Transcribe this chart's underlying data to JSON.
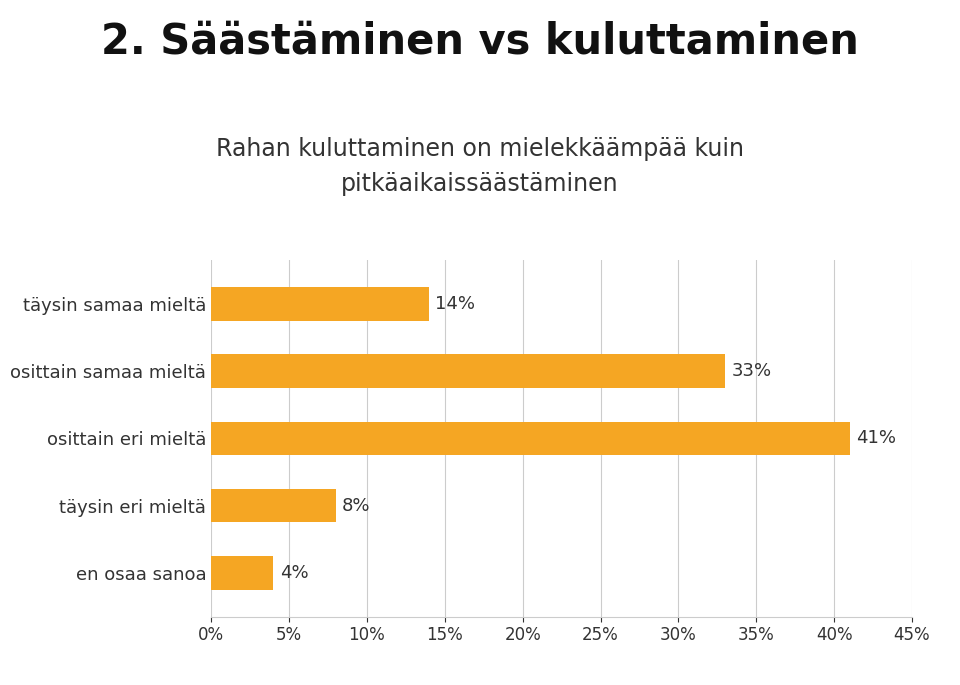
{
  "title": "2. Säästäminen vs kuluttaminen",
  "subtitle": "Rahan kuluttaminen on mielekkäämpää kuin\npitkäaikaissäästäminen",
  "categories": [
    "täysin samaa mieltä",
    "osittain samaa mieltä",
    "osittain eri mieltä",
    "täysin eri mieltä",
    "en osaa sanoa"
  ],
  "values": [
    14,
    33,
    41,
    8,
    4
  ],
  "labels": [
    "14%",
    "33%",
    "41%",
    "8%",
    "4%"
  ],
  "bar_color": "#F5A623",
  "background_color": "#FFFFFF",
  "grid_color": "#CCCCCC",
  "title_color": "#111111",
  "subtitle_color": "#333333",
  "label_color": "#333333",
  "xlim": [
    0,
    45
  ],
  "xticks": [
    0,
    5,
    10,
    15,
    20,
    25,
    30,
    35,
    40,
    45
  ],
  "xtick_labels": [
    "0%",
    "5%",
    "10%",
    "15%",
    "20%",
    "25%",
    "30%",
    "35%",
    "40%",
    "45%"
  ],
  "title_fontsize": 30,
  "subtitle_fontsize": 17,
  "category_fontsize": 13,
  "value_fontsize": 13,
  "xtick_fontsize": 12,
  "bar_height": 0.5
}
